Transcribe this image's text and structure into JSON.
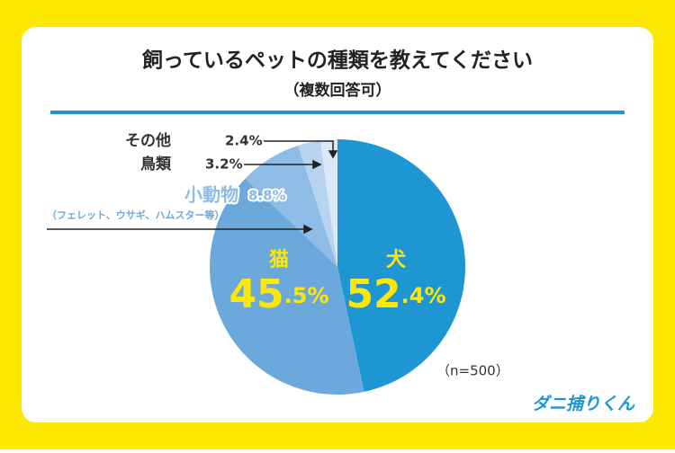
{
  "chart_data": {
    "type": "pie",
    "title": "飼っているペットの種類を教えてください",
    "subtitle": "（複数回答可）",
    "categories": [
      "犬",
      "猫",
      "小動物",
      "鳥類",
      "その他"
    ],
    "values": [
      52.4,
      45.5,
      8.8,
      3.2,
      2.4
    ],
    "value_labels": [
      "52.4%",
      "45.5%",
      "8.8%",
      "3.2%",
      "2.4%"
    ],
    "colors": [
      "#1e96d3",
      "#6ba9dc",
      "#8dbde6",
      "#b6d4ef",
      "#dbe9f6"
    ],
    "annotation": "（フェレット、ウサギ、ハムスター等）",
    "note": "（n=500）",
    "brand": "ダニ捕りくん"
  }
}
